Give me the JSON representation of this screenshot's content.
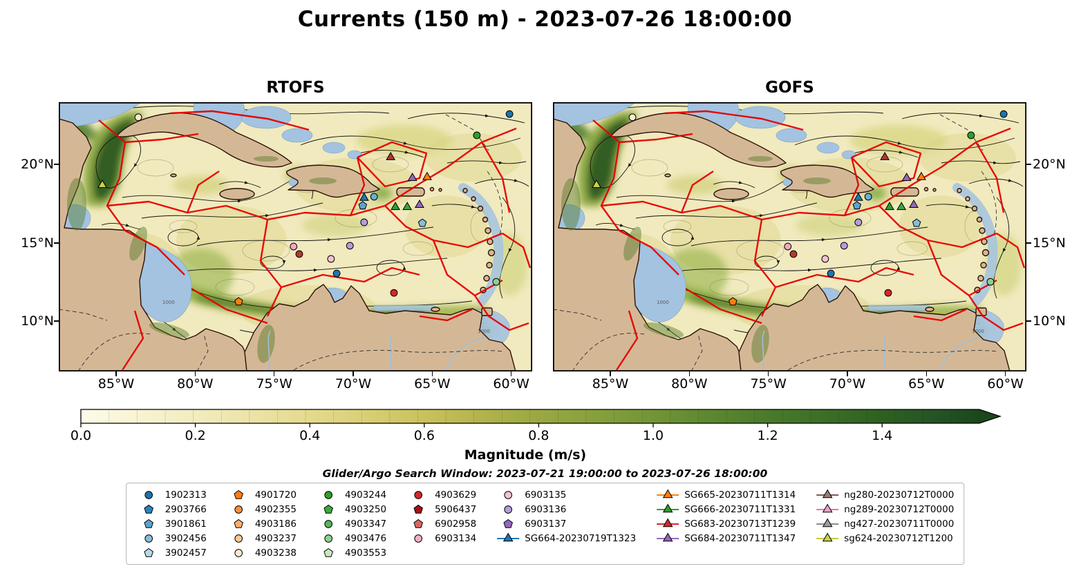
{
  "title": "Currents (150 m) - 2023-07-26 18:00:00",
  "subtitle": "Glider/Argo Search Window: 2023-07-21 19:00:00 to 2023-07-26 18:00:00",
  "panels": [
    {
      "title": "RTOFS"
    },
    {
      "title": "GOFS"
    }
  ],
  "axes": {
    "lon_ticks": [
      "85°W",
      "80°W",
      "75°W",
      "70°W",
      "65°W",
      "60°W"
    ],
    "lon_tick_pcts": [
      12.12,
      28.81,
      45.5,
      62.19,
      78.88,
      95.57
    ],
    "lat_ticks": [
      "20°N",
      "15°N",
      "10°N"
    ],
    "lat_tick_pcts": [
      23.1,
      52.3,
      81.3
    ]
  },
  "colorbar": {
    "label": "Magnitude (m/s)",
    "ticks": [
      "0.0",
      "0.2",
      "0.4",
      "0.6",
      "0.8",
      "1.0",
      "1.2",
      "1.4"
    ],
    "tick_values": [
      0.0,
      0.2,
      0.4,
      0.6,
      0.8,
      1.0,
      1.2,
      1.4
    ],
    "extend": "max",
    "color_low": "#fdfce9",
    "color_high": "#1b471c"
  },
  "map_annotations": {
    "isobath": "1000"
  },
  "legend": {
    "columns": [
      {
        "entries": [
          {
            "label": "1902313",
            "shape": "circle",
            "color": "#1c73b1"
          },
          {
            "label": "2903766",
            "shape": "pentagon",
            "color": "#2b83be"
          },
          {
            "label": "3901861",
            "shape": "pentagon",
            "color": "#5ba3d0"
          },
          {
            "label": "3902456",
            "shape": "circle",
            "color": "#86bdde"
          },
          {
            "label": "3902457",
            "shape": "pentagon",
            "color": "#b8d9ec"
          }
        ]
      },
      {
        "entries": [
          {
            "label": "4901720",
            "shape": "pentagon",
            "color": "#ff7f0e"
          },
          {
            "label": "4902355",
            "shape": "circle",
            "color": "#fd9139"
          },
          {
            "label": "4903186",
            "shape": "pentagon",
            "color": "#fdae6b"
          },
          {
            "label": "4903237",
            "shape": "circle",
            "color": "#fdc98b"
          },
          {
            "label": "4903238",
            "shape": "circle",
            "color": "#fbe9cf"
          }
        ]
      },
      {
        "entries": [
          {
            "label": "4903244",
            "shape": "circle",
            "color": "#2ca02c"
          },
          {
            "label": "4903250",
            "shape": "pentagon",
            "color": "#3aa83a"
          },
          {
            "label": "4903347",
            "shape": "circle",
            "color": "#57b657"
          },
          {
            "label": "4903476",
            "shape": "circle",
            "color": "#8ed08e"
          },
          {
            "label": "4903553",
            "shape": "pentagon",
            "color": "#c8e9c0"
          }
        ]
      },
      {
        "entries": [
          {
            "label": "4903629",
            "shape": "circle",
            "color": "#d62728"
          },
          {
            "label": "5906437",
            "shape": "pentagon",
            "color": "#a50f15"
          },
          {
            "label": "6902958",
            "shape": "pentagon",
            "color": "#d9675f"
          },
          {
            "label": "6903134",
            "shape": "circle",
            "color": "#f2b0be"
          }
        ]
      },
      {
        "entries": [
          {
            "label": "6903135",
            "shape": "circle",
            "color": "#f7c1cf"
          },
          {
            "label": "6903136",
            "shape": "circle",
            "color": "#b39ddb"
          },
          {
            "label": "6903137",
            "shape": "pentagon",
            "color": "#9467bd"
          },
          {
            "label": "SG664-20230719T1323",
            "shape": "triangle",
            "color": "#1f77b4",
            "line": "#1f77b4"
          }
        ]
      },
      {
        "entries": [
          {
            "label": "SG665-20230711T1314",
            "shape": "triangle",
            "color": "#ff7f0e",
            "line": "#ff7f0e"
          },
          {
            "label": "SG666-20230711T1331",
            "shape": "triangle",
            "color": "#2ca02c",
            "line": "#2ca02c"
          },
          {
            "label": "SG683-20230713T1239",
            "shape": "triangle",
            "color": "#d62728",
            "line": "#d62728"
          },
          {
            "label": "SG684-20230711T1347",
            "shape": "triangle",
            "color": "#9467bd",
            "line": "#9467bd"
          }
        ]
      },
      {
        "entries": [
          {
            "label": "ng280-20230712T0000",
            "shape": "triangle",
            "color": "#9e7b72",
            "line": "#7a5c52"
          },
          {
            "label": "ng289-20230712T0000",
            "shape": "triangle",
            "color": "#f2a0c8",
            "line": "#f06eaa"
          },
          {
            "label": "ng427-20230711T0000",
            "shape": "triangle",
            "color": "#9e9e9e",
            "line": "#8a8a8a"
          },
          {
            "label": "sg624-20230712T1200",
            "shape": "triangle",
            "color": "#cdd04b",
            "line": "#c3c83e"
          }
        ]
      }
    ]
  },
  "chart_data": {
    "type": "heatmap",
    "title": "Currents (150 m) - 2023-07-26 18:00:00",
    "subplots": [
      {
        "title": "RTOFS"
      },
      {
        "title": "GOFS"
      }
    ],
    "region": {
      "lon_ticks": [
        "85°W",
        "80°W",
        "75°W",
        "70°W",
        "65°W",
        "60°W"
      ],
      "lat_ticks": [
        "20°N",
        "15°N",
        "10°N"
      ]
    },
    "colorbar": {
      "label": "Magnitude (m/s)",
      "min": 0.0,
      "max": 1.4,
      "extend": "max",
      "tick_values": [
        0.0,
        0.2,
        0.4,
        0.6,
        0.8,
        1.0,
        1.2,
        1.4
      ]
    },
    "search_window": {
      "start": "2023-07-21 19:00:00",
      "end": "2023-07-26 18:00:00"
    },
    "observations": [
      {
        "shape": "circle",
        "color": "#fbe9cf",
        "x_pct": 16.8,
        "y_pct": 5.6
      },
      {
        "shape": "circle",
        "color": "#1c73b1",
        "x_pct": 95.2,
        "y_pct": 4.4
      },
      {
        "shape": "circle",
        "color": "#2ca02c",
        "x_pct": 88.3,
        "y_pct": 12.3
      },
      {
        "shape": "triangle",
        "color": "#a83a32",
        "x_pct": 70.1,
        "y_pct": 20.5
      },
      {
        "shape": "triangle",
        "color": "#9467bd",
        "x_pct": 74.7,
        "y_pct": 28.2
      },
      {
        "shape": "triangle",
        "color": "#ff7f0e",
        "x_pct": 77.8,
        "y_pct": 27.9
      },
      {
        "shape": "triangle",
        "color": "#cdd04b",
        "x_pct": 9.2,
        "y_pct": 30.8
      },
      {
        "shape": "triangle",
        "color": "#1f77b4",
        "x_pct": 64.5,
        "y_pct": 35.6
      },
      {
        "shape": "circle",
        "color": "#6baed6",
        "x_pct": 66.6,
        "y_pct": 35.1
      },
      {
        "shape": "pentagon",
        "color": "#5ba3d0",
        "x_pct": 64.2,
        "y_pct": 38.4
      },
      {
        "shape": "triangle",
        "color": "#2ca02c",
        "x_pct": 71.1,
        "y_pct": 39.0
      },
      {
        "shape": "triangle",
        "color": "#3aa83a",
        "x_pct": 73.6,
        "y_pct": 39.0
      },
      {
        "shape": "triangle",
        "color": "#9467bd",
        "x_pct": 76.2,
        "y_pct": 38.2
      },
      {
        "shape": "circle",
        "color": "#b39ddb",
        "x_pct": 64.5,
        "y_pct": 44.6
      },
      {
        "shape": "pentagon",
        "color": "#86bdde",
        "x_pct": 76.8,
        "y_pct": 44.9
      },
      {
        "shape": "circle",
        "color": "#f4a9b8",
        "x_pct": 49.6,
        "y_pct": 53.6
      },
      {
        "shape": "circle",
        "color": "#b03a30",
        "x_pct": 50.8,
        "y_pct": 56.4
      },
      {
        "shape": "circle",
        "color": "#b39ddb",
        "x_pct": 61.5,
        "y_pct": 53.3
      },
      {
        "shape": "circle",
        "color": "#f7c1cf",
        "x_pct": 57.5,
        "y_pct": 58.2
      },
      {
        "shape": "circle",
        "color": "#1f77b4",
        "x_pct": 58.7,
        "y_pct": 63.6
      },
      {
        "shape": "pentagon",
        "color": "#ff7f0e",
        "x_pct": 38.0,
        "y_pct": 74.1
      },
      {
        "shape": "circle",
        "color": "#d62728",
        "x_pct": 70.8,
        "y_pct": 70.8
      },
      {
        "shape": "circle",
        "color": "#8ed08e",
        "x_pct": 92.4,
        "y_pct": 66.7
      }
    ]
  }
}
